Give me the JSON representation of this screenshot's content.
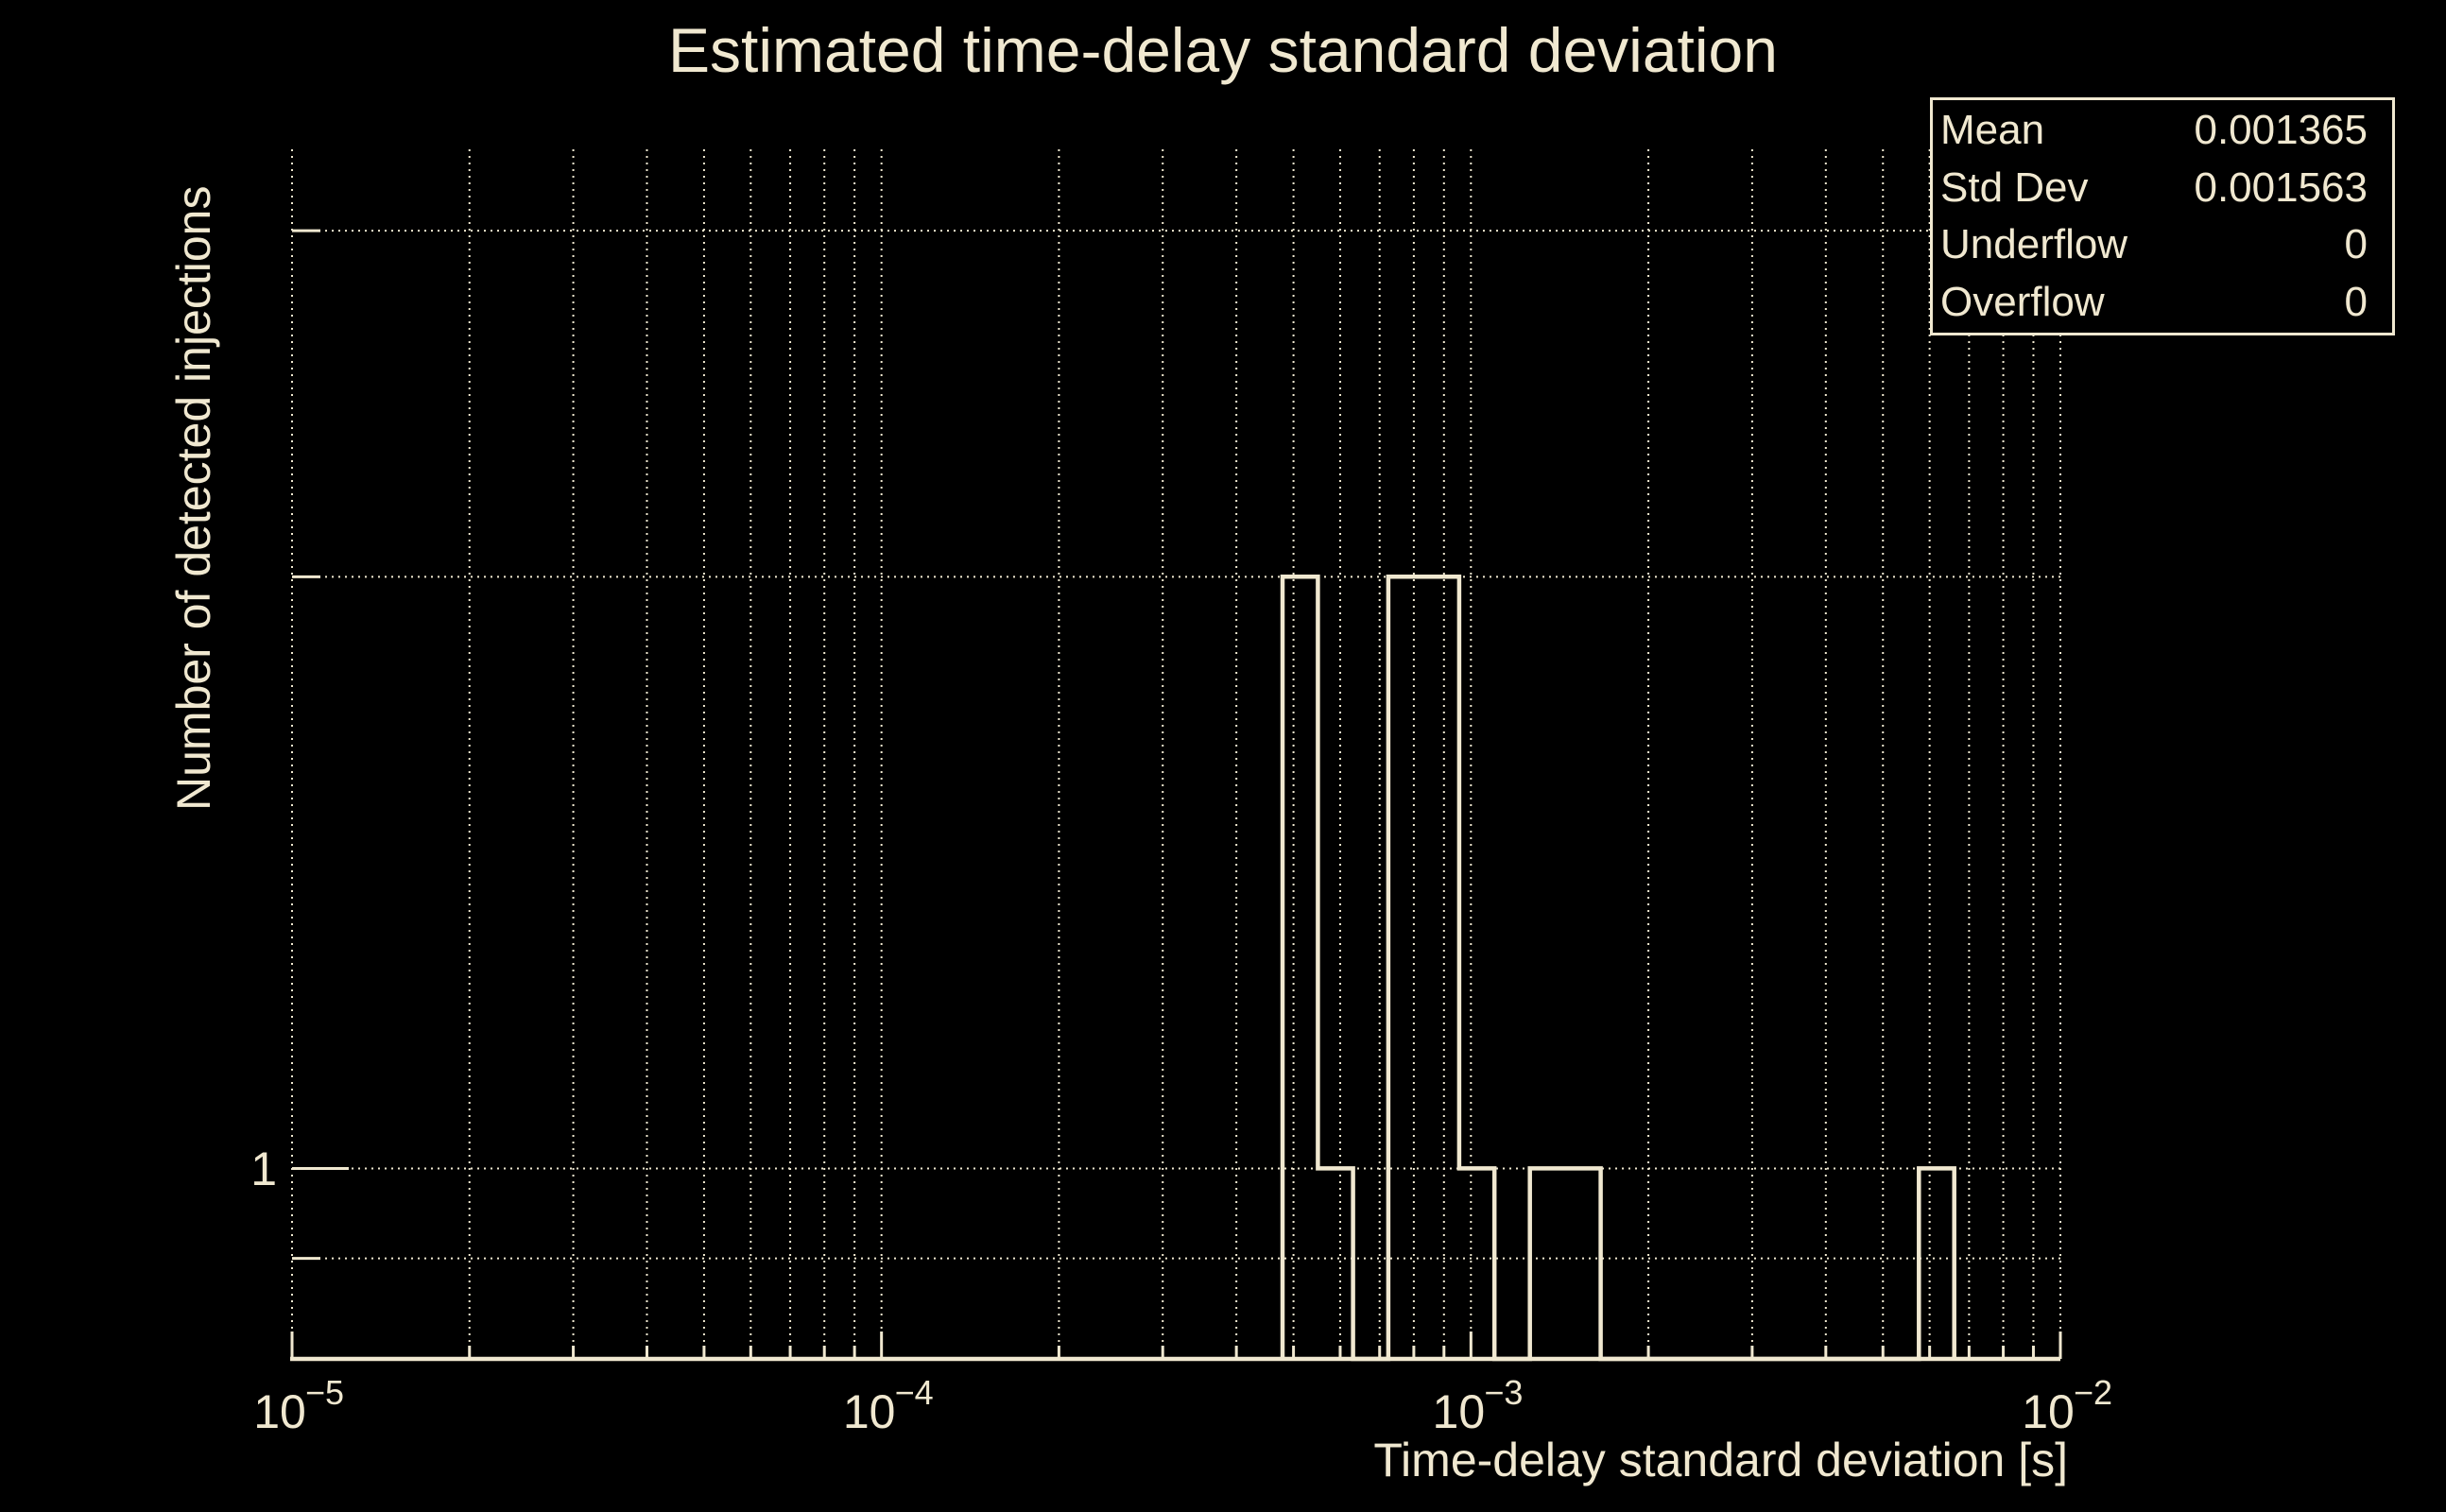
{
  "title": "Estimated time-delay standard deviation",
  "colors": {
    "background": "#000000",
    "foreground": "#f0e8d0"
  },
  "x_axis": {
    "title": "Time-delay standard deviation [s]",
    "scale": "log",
    "major_ticks": [
      {
        "base": "10",
        "exponent": "−5",
        "exp": -5
      },
      {
        "base": "10",
        "exponent": "−4",
        "exp": -4
      },
      {
        "base": "10",
        "exponent": "−3",
        "exp": -3
      },
      {
        "base": "10",
        "exponent": "−2",
        "exp": -2
      }
    ]
  },
  "y_axis": {
    "title": "Number of detected injections",
    "scale": "log",
    "major_tick_label": "1",
    "major_tick_value": 1,
    "minor_tick_values": [
      0.9,
      2,
      3
    ]
  },
  "stats_box": {
    "rows": [
      {
        "label": "Mean",
        "value": "0.001365"
      },
      {
        "label": "Std Dev",
        "value": "0.001563"
      },
      {
        "label": "Underflow",
        "value": "0"
      },
      {
        "label": "Overflow",
        "value": "0"
      }
    ]
  },
  "chart_data": {
    "type": "bar",
    "title": "Estimated time-delay standard deviation",
    "xlabel": "Time-delay standard deviation [s]",
    "ylabel": "Number of detected injections",
    "xscale": "log",
    "yscale": "log",
    "xlim": [
      1e-05,
      0.01
    ],
    "ylim": [
      0.8,
      3.3
    ],
    "grid": true,
    "histogram_bins": [
      {
        "x_min": 0.000479,
        "x_max": 0.00055,
        "count": 2
      },
      {
        "x_min": 0.00055,
        "x_max": 0.000631,
        "count": 1
      },
      {
        "x_min": 0.000724,
        "x_max": 0.000832,
        "count": 2
      },
      {
        "x_min": 0.000832,
        "x_max": 0.000955,
        "count": 2
      },
      {
        "x_min": 0.000955,
        "x_max": 0.001096,
        "count": 1
      },
      {
        "x_min": 0.001259,
        "x_max": 0.001445,
        "count": 1
      },
      {
        "x_min": 0.001445,
        "x_max": 0.00166,
        "count": 1
      },
      {
        "x_min": 0.005754,
        "x_max": 0.006607,
        "count": 1
      }
    ]
  }
}
